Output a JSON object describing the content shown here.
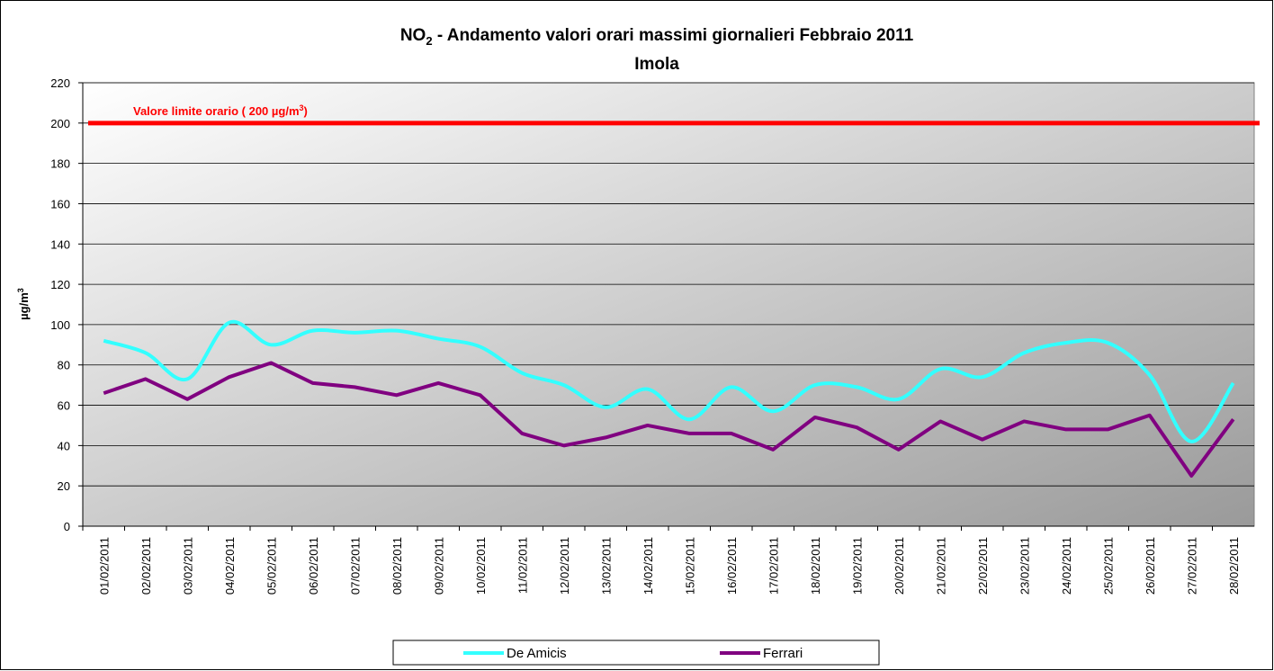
{
  "chart_data": {
    "type": "line",
    "title": [
      "NO",
      "2",
      " - Andamento valori orari massimi giornalieri Febbraio 2011"
    ],
    "subtitle": "Imola",
    "y_label": [
      "µg/m",
      "3"
    ],
    "annotation": [
      "Valore limite orario ( 200 µg/m",
      "3",
      ")"
    ],
    "reference_line": {
      "value": 200,
      "color": "#ff0000"
    },
    "categories": [
      "01/02/2011",
      "02/02/2011",
      "03/02/2011",
      "04/02/2011",
      "05/02/2011",
      "06/02/2011",
      "07/02/2011",
      "08/02/2011",
      "09/02/2011",
      "10/02/2011",
      "11/02/2011",
      "12/02/2011",
      "13/02/2011",
      "14/02/2011",
      "15/02/2011",
      "16/02/2011",
      "17/02/2011",
      "18/02/2011",
      "19/02/2011",
      "20/02/2011",
      "21/02/2011",
      "22/02/2011",
      "23/02/2011",
      "24/02/2011",
      "25/02/2011",
      "26/02/2011",
      "27/02/2011",
      "28/02/2011"
    ],
    "series": [
      {
        "name": "De Amicis",
        "color": "#33ffff",
        "smooth": true,
        "values": [
          92,
          86,
          73,
          101,
          90,
          97,
          96,
          97,
          93,
          89,
          76,
          70,
          59,
          68,
          53,
          69,
          57,
          70,
          69,
          63,
          78,
          74,
          86,
          91,
          91,
          75,
          42,
          71
        ]
      },
      {
        "name": "Ferrari",
        "color": "#800080",
        "smooth": false,
        "values": [
          66,
          73,
          63,
          74,
          81,
          71,
          69,
          65,
          71,
          65,
          46,
          40,
          44,
          50,
          46,
          46,
          38,
          54,
          49,
          38,
          52,
          43,
          52,
          48,
          48,
          55,
          25,
          53
        ]
      }
    ],
    "ylim": [
      0,
      220
    ],
    "yticks": [
      0,
      20,
      40,
      60,
      80,
      100,
      120,
      140,
      160,
      180,
      200,
      220
    ],
    "grid": true
  }
}
